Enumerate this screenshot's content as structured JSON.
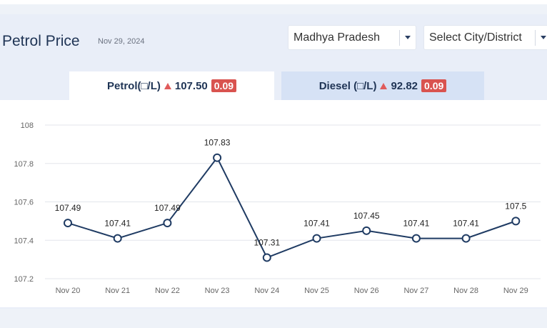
{
  "header": {
    "title": "Petrol Price",
    "date": "Nov 29, 2024"
  },
  "filters": {
    "state": "Madhya Pradesh",
    "city": "Select City/District"
  },
  "tabs": {
    "petrol": {
      "label": "Petrol(□/L)",
      "price": "107.50",
      "change": "0.09",
      "trend": "up"
    },
    "diesel": {
      "label": "Diesel (□/L)",
      "price": "92.82",
      "change": "0.09",
      "trend": "up"
    }
  },
  "colors": {
    "line": "#1f3b63",
    "badge": "#d9534f",
    "up_arrow": "#e05b5b"
  },
  "chart_data": {
    "type": "line",
    "categories": [
      "Nov 20",
      "Nov 21",
      "Nov 22",
      "Nov 23",
      "Nov 24",
      "Nov 25",
      "Nov 26",
      "Nov 27",
      "Nov 28",
      "Nov 29"
    ],
    "series": [
      {
        "values": [
          107.49,
          107.41,
          107.49,
          107.83,
          107.31,
          107.41,
          107.45,
          107.41,
          107.41,
          107.5
        ],
        "labels": [
          "107.49",
          "107.41",
          "107.49",
          "107.83",
          "107.31",
          "107.41",
          "107.45",
          "107.41",
          "107.41",
          "107.5"
        ]
      }
    ],
    "ylim": [
      107.2,
      108
    ],
    "yticks": [
      "107.2",
      "107.4",
      "107.6",
      "107.8",
      "108"
    ],
    "grid": true
  }
}
